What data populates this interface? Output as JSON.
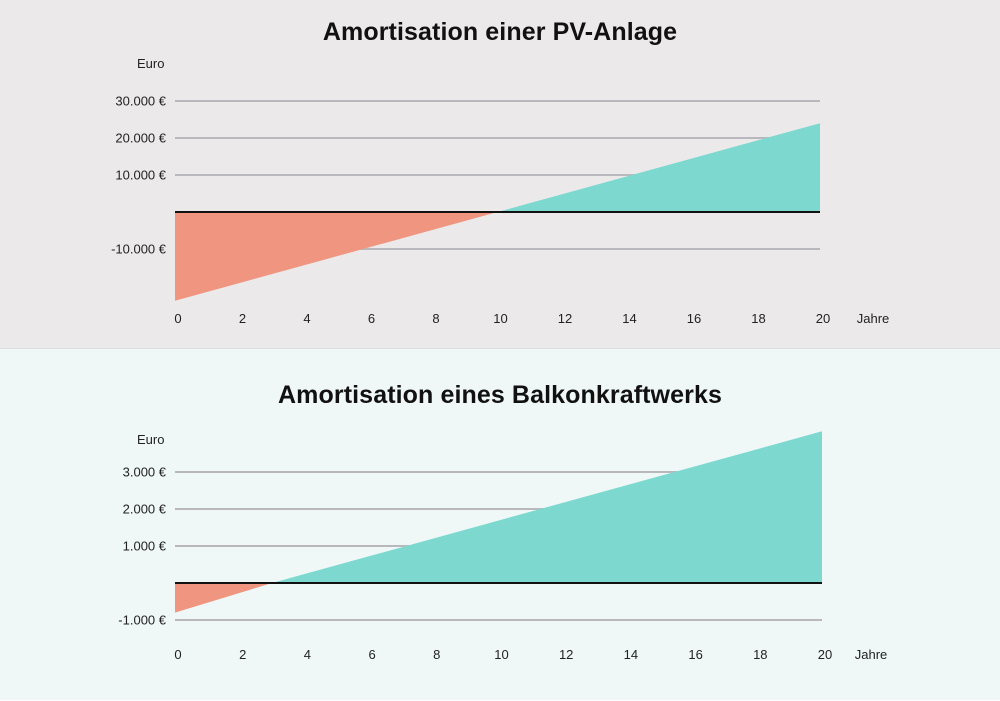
{
  "colors": {
    "positive": "#7dd8cf",
    "negative": "#ef9580",
    "zero_line": "#111111",
    "grid": "#b9b9bd",
    "panel_top_bg": "#ece9ea",
    "panel_bottom_bg": "#eff8f6"
  },
  "chart_data": [
    {
      "type": "area",
      "title": "Amortisation einer PV-Anlage",
      "ylabel": "Euro",
      "xlabel": "Jahre",
      "x_ticks": [
        "0",
        "2",
        "4",
        "6",
        "8",
        "10",
        "12",
        "14",
        "16",
        "18",
        "20"
      ],
      "y_ticks": [
        {
          "value": 30000,
          "label": "30.000 €"
        },
        {
          "value": 20000,
          "label": "20.000 €"
        },
        {
          "value": 10000,
          "label": "10.000 €"
        },
        {
          "value": -10000,
          "label": "-10.000 €"
        }
      ],
      "xlim": [
        0,
        20
      ],
      "ylim": [
        -24000,
        30000
      ],
      "grid": true,
      "series": [
        {
          "x": [
            0,
            10,
            20
          ],
          "values": [
            -24000,
            0,
            24000
          ]
        }
      ]
    },
    {
      "type": "area",
      "title": "Amortisation eines Balkonkraftwerks",
      "ylabel": "Euro",
      "xlabel": "Jahre",
      "x_ticks": [
        "0",
        "2",
        "4",
        "6",
        "8",
        "10",
        "12",
        "14",
        "16",
        "18",
        "20"
      ],
      "y_ticks": [
        {
          "value": 3000,
          "label": "3.000 €"
        },
        {
          "value": 2000,
          "label": "2.000 €"
        },
        {
          "value": 1000,
          "label": "1.000 €"
        },
        {
          "value": -1000,
          "label": "-1.000 €"
        }
      ],
      "xlim": [
        0,
        20
      ],
      "ylim": [
        -1000,
        4100
      ],
      "grid": true,
      "series": [
        {
          "x": [
            0,
            3,
            20
          ],
          "values": [
            -800,
            0,
            4100
          ]
        }
      ]
    }
  ]
}
